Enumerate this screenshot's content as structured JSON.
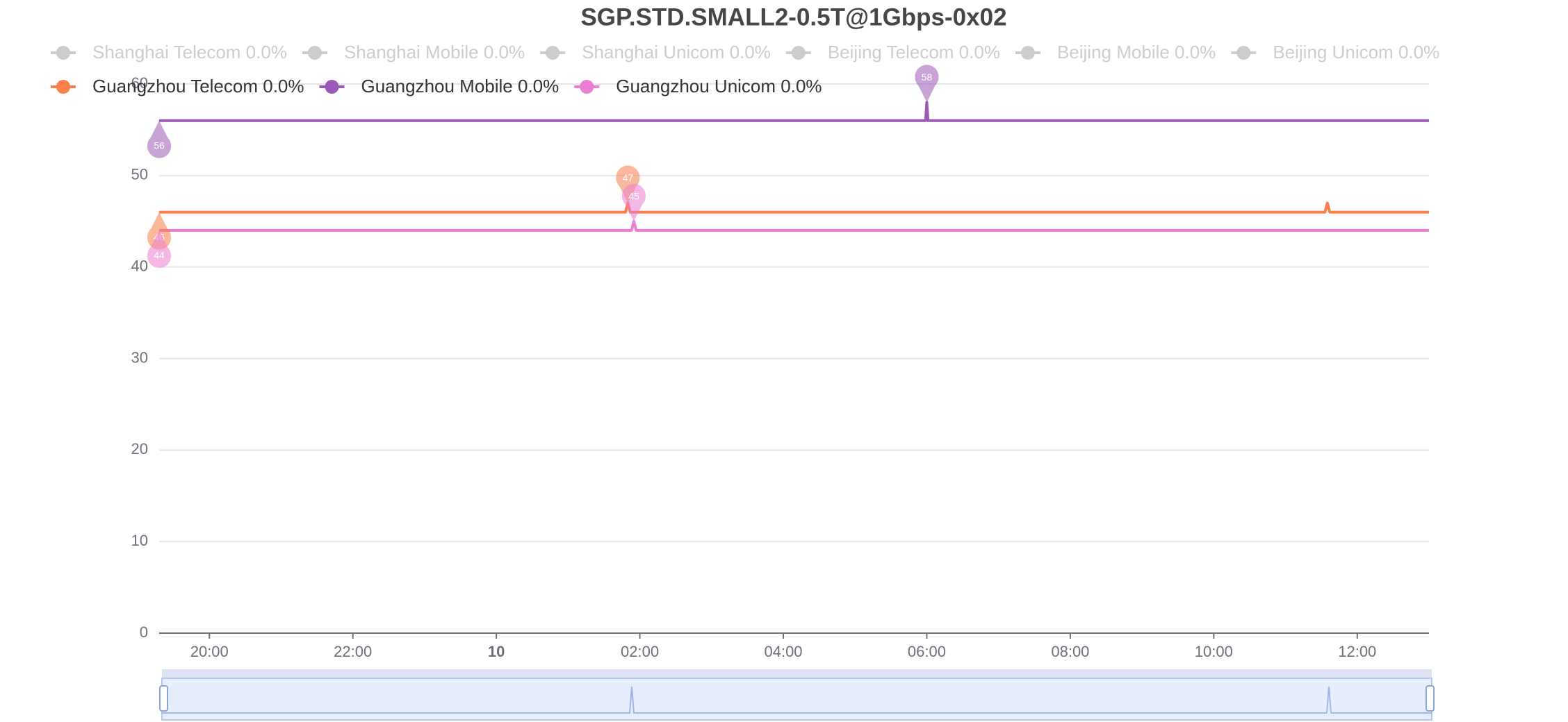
{
  "chart_data": {
    "type": "line",
    "title": "SGP.STD.SMALL2-0.5T@1Gbps-0x02",
    "inactive_legend": [
      "Shanghai Telecom 0.0%",
      "Shanghai Mobile 0.0%",
      "Shanghai Unicom 0.0%",
      "Beijing Telecom 0.0%",
      "Beijing Mobile 0.0%",
      "Beijing Unicom 0.0%"
    ],
    "inactive_color": "#cccccc",
    "x": [
      "19:18",
      "01:48",
      "01:50",
      "01:52",
      "01:53",
      "01:55",
      "01:57",
      "05:59",
      "06:00",
      "06:01",
      "11:33",
      "11:35",
      "11:37",
      "13:00"
    ],
    "series": [
      {
        "name": "Guangzhou Telecom 0.0%",
        "color": "#f97f4b",
        "values": [
          46,
          46,
          47,
          46,
          46,
          46,
          46,
          46,
          46,
          46,
          46,
          47,
          46,
          46
        ],
        "min_point": 0,
        "max_point": 2
      },
      {
        "name": "Guangzhou Mobile 0.0%",
        "color": "#9b59b6",
        "values": [
          56,
          56,
          56,
          56,
          56,
          56,
          56,
          56,
          58,
          56,
          56,
          56,
          56,
          56
        ],
        "min_point": 0,
        "max_point": 8
      },
      {
        "name": "Guangzhou Unicom 0.0%",
        "color": "#ec7ed3",
        "values": [
          44,
          44,
          44,
          44,
          44,
          45,
          44,
          44,
          44,
          44,
          44,
          44,
          44,
          44
        ],
        "min_point": 0,
        "max_point": 5
      }
    ],
    "xlim": [
      "19:18",
      "13:00"
    ],
    "xticks": [
      "20:00",
      "22:00",
      {
        "value": "00:00",
        "label": "10"
      },
      "02:00",
      "04:00",
      "06:00",
      "08:00",
      "10:00",
      "12:00"
    ],
    "ylim": [
      0,
      60
    ],
    "yticks": [
      0,
      10,
      20,
      30,
      40,
      50,
      60
    ],
    "grid": true
  }
}
